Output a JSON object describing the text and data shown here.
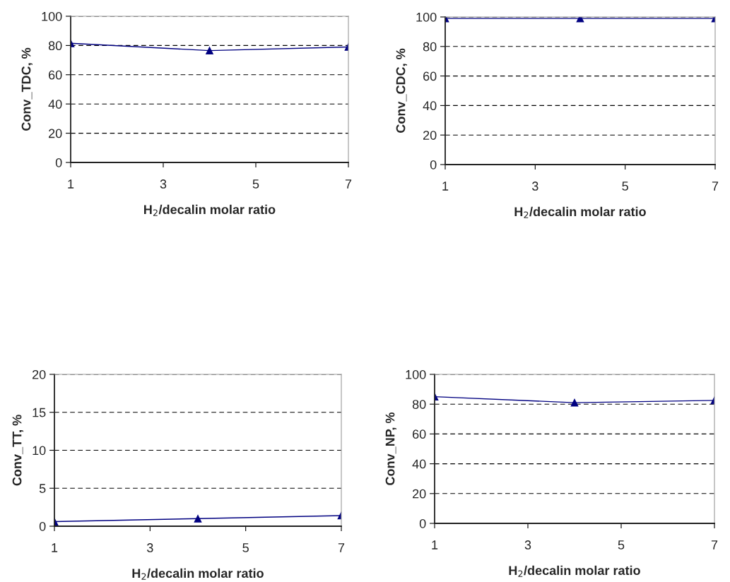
{
  "chart_data": [
    {
      "type": "line",
      "xlabel": "H$_{2}$/decalin molar ratio",
      "ylabel": "Conv_TDC, %",
      "x": [
        1,
        4,
        7
      ],
      "series": [
        {
          "color": "#000080",
          "values": [
            81.5,
            76.5,
            79
          ]
        }
      ],
      "xlim": [
        1,
        7
      ],
      "xticks": [
        1,
        3,
        5,
        7
      ],
      "ylim": [
        0,
        100
      ],
      "yticks": [
        0,
        20,
        40,
        60,
        80,
        100
      ],
      "grid": "y",
      "marker": "triangle",
      "line_style": "solid"
    },
    {
      "type": "line",
      "xlabel": "H$_{2}$/decalin molar ratio",
      "ylabel": "Conv_CDC, %",
      "x": [
        1,
        4,
        7
      ],
      "series": [
        {
          "color": "#000080",
          "values": [
            99,
            99,
            99
          ]
        }
      ],
      "xlim": [
        1,
        7
      ],
      "xticks": [
        1,
        3,
        5,
        7
      ],
      "ylim": [
        0,
        100
      ],
      "yticks": [
        0,
        20,
        40,
        60,
        80,
        100
      ],
      "grid": "y",
      "marker": "triangle",
      "line_style": "solid"
    },
    {
      "type": "line",
      "xlabel": "H$_{2}$/decalin molar ratio",
      "ylabel": "Conv_TT, %",
      "x": [
        1,
        4,
        7
      ],
      "series": [
        {
          "color": "#000080",
          "values": [
            0.6,
            1,
            1.4
          ]
        }
      ],
      "xlim": [
        1,
        7
      ],
      "xticks": [
        1,
        3,
        5,
        7
      ],
      "ylim": [
        0,
        20
      ],
      "yticks": [
        0,
        5,
        10,
        15,
        20
      ],
      "grid": "y",
      "marker": "triangle",
      "line_style": "solid"
    },
    {
      "type": "line",
      "xlabel": "H$_{2}$/decalin molar ratio",
      "ylabel": "Conv_NP, %",
      "x": [
        1,
        4,
        7
      ],
      "series": [
        {
          "color": "#000080",
          "values": [
            85,
            81,
            82.5
          ]
        }
      ],
      "xlim": [
        1,
        7
      ],
      "xticks": [
        1,
        3,
        5,
        7
      ],
      "ylim": [
        0,
        100
      ],
      "yticks": [
        0,
        20,
        40,
        60,
        80,
        100
      ],
      "grid": "y",
      "marker": "triangle",
      "line_style": "solid"
    }
  ]
}
